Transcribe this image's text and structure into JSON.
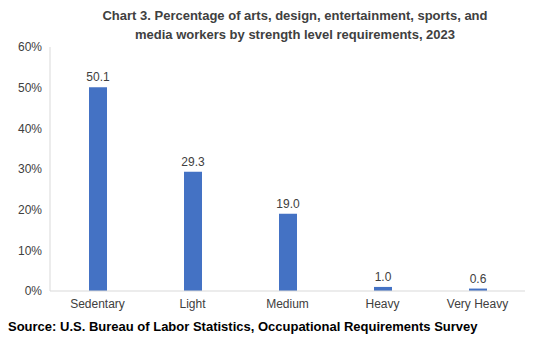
{
  "chart_data": {
    "type": "bar",
    "title": "Chart 3. Percentage of arts, design, entertainment, sports, and\nmedia workers by strength level requirements, 2023",
    "categories": [
      "Sedentary",
      "Light",
      "Medium",
      "Heavy",
      "Very Heavy"
    ],
    "values": [
      50.1,
      29.3,
      19.0,
      1.0,
      0.6
    ],
    "value_labels": [
      "50.1",
      "29.3",
      "19.0",
      "1.0",
      "0.6"
    ],
    "data_labels": true,
    "color": "#4472c4",
    "ylim": [
      0,
      60
    ],
    "yticks": [
      {
        "value": 0,
        "label": "0%"
      },
      {
        "value": 10,
        "label": "10%"
      },
      {
        "value": 20,
        "label": "20%"
      },
      {
        "value": 30,
        "label": "30%"
      },
      {
        "value": 40,
        "label": "40%"
      },
      {
        "value": 50,
        "label": "50%"
      },
      {
        "value": 60,
        "label": "60%"
      }
    ],
    "grid": false,
    "source": "Source: U.S. Bureau of Labor Statistics, Occupational Requirements Survey"
  }
}
